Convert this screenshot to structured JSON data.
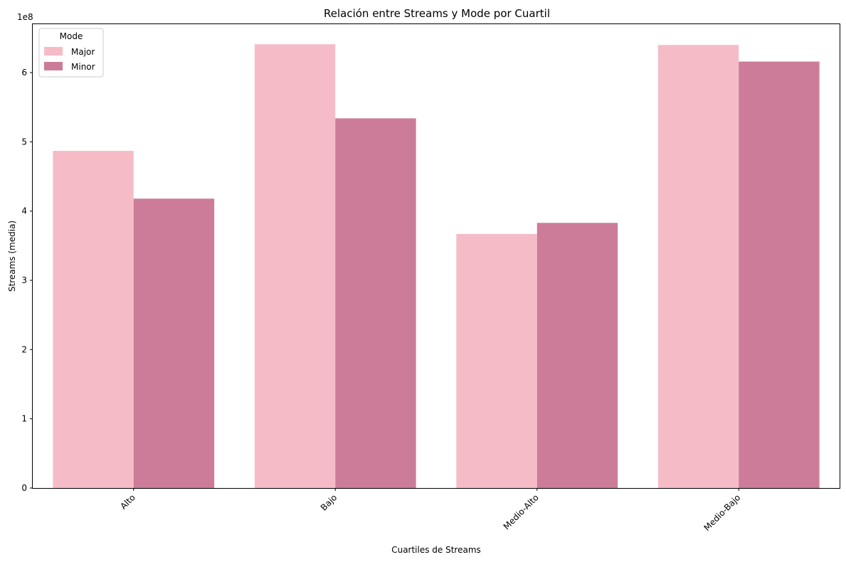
{
  "chart_data": {
    "type": "bar",
    "title": "Relación entre Streams y Mode por Cuartil",
    "xlabel": "Cuartiles de Streams",
    "ylabel": "Streams (media)",
    "y_offset_label": "1e8",
    "categories": [
      "Alto",
      "Bajo",
      "Medio-Alto",
      "Medio-Bajo"
    ],
    "ylim": [
      0,
      6.7
    ],
    "y_ticks": [
      0,
      1,
      2,
      3,
      4,
      5,
      6
    ],
    "y_tick_labels": [
      "0",
      "1",
      "2",
      "3",
      "4",
      "5",
      "6"
    ],
    "legend": {
      "title": "Mode",
      "placement": "top-left"
    },
    "grid": false,
    "series": [
      {
        "name": "Major",
        "color": "#f5bcc8",
        "values": [
          4.87,
          6.41,
          3.67,
          6.4
        ]
      },
      {
        "name": "Minor",
        "color": "#cc7c98",
        "values": [
          4.18,
          5.34,
          3.83,
          6.16
        ]
      }
    ]
  }
}
